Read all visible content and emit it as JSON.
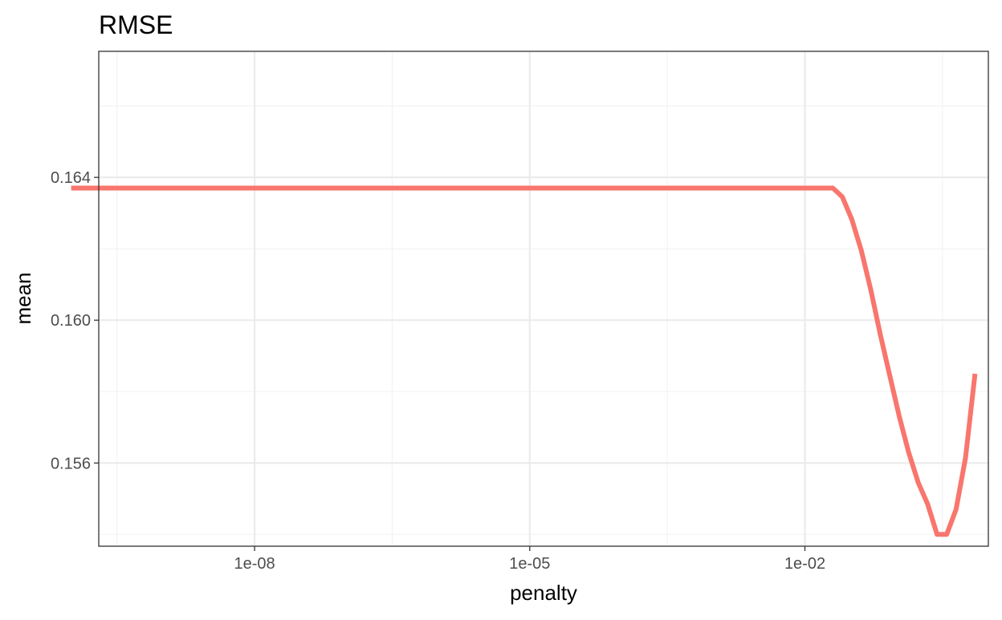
{
  "chart_data": {
    "type": "line",
    "title": "RMSE",
    "xlabel": "penalty",
    "ylabel": "mean",
    "x_scale": "log10",
    "xlim": [
      2e-10,
      1.0
    ],
    "ylim": [
      0.15367,
      0.16753
    ],
    "x_ticks": [
      {
        "value": 1e-08,
        "label": "1e-08"
      },
      {
        "value": 1e-05,
        "label": "1e-05"
      },
      {
        "value": 0.01,
        "label": "1e-02"
      }
    ],
    "y_ticks": [
      {
        "value": 0.156,
        "label": "0.156"
      },
      {
        "value": 0.16,
        "label": "0.160"
      },
      {
        "value": 0.164,
        "label": "0.164"
      }
    ],
    "grid": true,
    "legend": "none",
    "series": [
      {
        "color": "#F8766D",
        "x": [
          1e-10,
          1e-09,
          1e-08,
          1e-07,
          1e-06,
          1e-05,
          0.0001,
          0.001,
          0.01,
          0.0202,
          0.0256,
          0.0325,
          0.0412,
          0.0523,
          0.0663,
          0.0841,
          0.107,
          0.135,
          0.172,
          0.218,
          0.276,
          0.351,
          0.445,
          0.564,
          0.716
        ],
        "y": [
          0.1637,
          0.1637,
          0.1637,
          0.1637,
          0.1637,
          0.1637,
          0.1637,
          0.1637,
          0.1637,
          0.1637,
          0.16345,
          0.16282,
          0.16195,
          0.16085,
          0.1596,
          0.15845,
          0.1573,
          0.1563,
          0.15545,
          0.15485,
          0.154,
          0.154,
          0.1547,
          0.15615,
          0.1585
        ]
      }
    ]
  }
}
